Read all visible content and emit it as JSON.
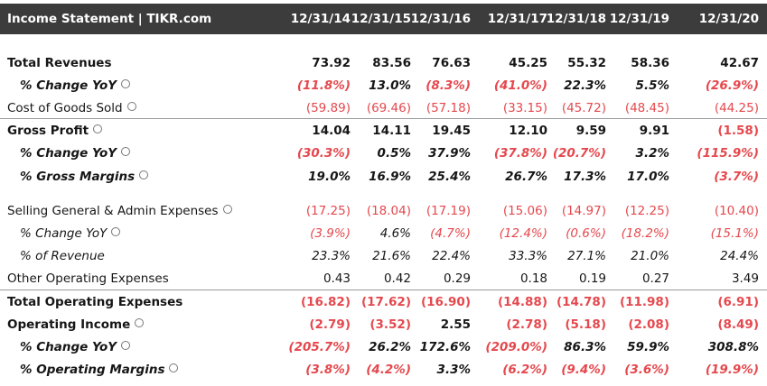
{
  "table": {
    "title": "Income Statement | TIKR.com",
    "columns": [
      "12/31/14",
      "12/31/15",
      "12/31/16",
      "12/31/17",
      "12/31/18",
      "12/31/19",
      "12/31/20"
    ],
    "rows": [
      {
        "label": "Total Revenues",
        "bold": true,
        "italic": false,
        "info": false,
        "values": [
          "73.92",
          "83.56",
          "76.63",
          "45.25",
          "55.32",
          "58.36",
          "42.67"
        ]
      },
      {
        "label": "% Change YoY",
        "bold": true,
        "italic": true,
        "info": true,
        "values": [
          "(11.8%)",
          "13.0%",
          "(8.3%)",
          "(41.0%)",
          "22.3%",
          "5.5%",
          "(26.9%)"
        ]
      },
      {
        "label": "Cost of Goods Sold",
        "bold": false,
        "italic": false,
        "info": true,
        "values": [
          "(59.89)",
          "(69.46)",
          "(57.18)",
          "(33.15)",
          "(45.72)",
          "(48.45)",
          "(44.25)"
        ]
      },
      {
        "label": "Gross Profit",
        "bold": true,
        "italic": false,
        "info": true,
        "border_top": true,
        "values": [
          "14.04",
          "14.11",
          "19.45",
          "12.10",
          "9.59",
          "9.91",
          "(1.58)"
        ]
      },
      {
        "label": "% Change YoY",
        "bold": true,
        "italic": true,
        "info": true,
        "values": [
          "(30.3%)",
          "0.5%",
          "37.9%",
          "(37.8%)",
          "(20.7%)",
          "3.2%",
          "(115.9%)"
        ]
      },
      {
        "label": "% Gross Margins",
        "bold": true,
        "italic": true,
        "info": true,
        "values": [
          "19.0%",
          "16.9%",
          "25.4%",
          "26.7%",
          "17.3%",
          "17.0%",
          "(3.7%)"
        ]
      },
      {
        "label": "Selling General & Admin Expenses",
        "bold": false,
        "italic": false,
        "info": true,
        "values": [
          "(17.25)",
          "(18.04)",
          "(17.19)",
          "(15.06)",
          "(14.97)",
          "(12.25)",
          "(10.40)"
        ]
      },
      {
        "label": "% Change YoY",
        "bold": false,
        "italic": true,
        "info": true,
        "values": [
          "(3.9%)",
          "4.6%",
          "(4.7%)",
          "(12.4%)",
          "(0.6%)",
          "(18.2%)",
          "(15.1%)"
        ]
      },
      {
        "label": "% of Revenue",
        "bold": false,
        "italic": true,
        "info": false,
        "values": [
          "23.3%",
          "21.6%",
          "22.4%",
          "33.3%",
          "27.1%",
          "21.0%",
          "24.4%"
        ]
      },
      {
        "label": "Other Operating Expenses",
        "bold": false,
        "italic": false,
        "info": false,
        "values": [
          "0.43",
          "0.42",
          "0.29",
          "0.18",
          "0.19",
          "0.27",
          "3.49"
        ]
      },
      {
        "label": "Total Operating Expenses",
        "bold": true,
        "italic": false,
        "info": false,
        "border_top": true,
        "values": [
          "(16.82)",
          "(17.62)",
          "(16.90)",
          "(14.88)",
          "(14.78)",
          "(11.98)",
          "(6.91)"
        ]
      },
      {
        "label": "Operating Income",
        "bold": true,
        "italic": false,
        "info": true,
        "values": [
          "(2.79)",
          "(3.52)",
          "2.55",
          "(2.78)",
          "(5.18)",
          "(2.08)",
          "(8.49)"
        ]
      },
      {
        "label": "% Change YoY",
        "bold": true,
        "italic": true,
        "info": true,
        "values": [
          "(205.7%)",
          "26.2%",
          "172.6%",
          "(209.0%)",
          "86.3%",
          "59.9%",
          "308.8%"
        ]
      },
      {
        "label": "% Operating Margins",
        "bold": true,
        "italic": true,
        "info": true,
        "values": [
          "(3.8%)",
          "(4.2%)",
          "3.3%",
          "(6.2%)",
          "(9.4%)",
          "(3.6%)",
          "(19.9%)"
        ]
      }
    ]
  }
}
